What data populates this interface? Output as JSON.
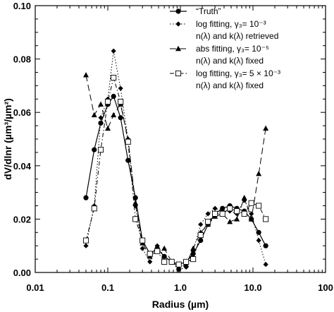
{
  "chart_data": {
    "type": "line",
    "title": "",
    "xlabel": "Radius (µm)",
    "ylabel": "dV/dlnr (µm³/µm²)",
    "xscale": "log",
    "xlim": [
      0.01,
      100
    ],
    "ylim": [
      0.0,
      0.1
    ],
    "grid": false,
    "legend_position": "top-right",
    "x_ticks": [
      "0.01",
      "0.1",
      "1.0",
      "10.0",
      "100"
    ],
    "y_ticks": [
      "0.00",
      "0.02",
      "0.04",
      "0.06",
      "0.08",
      "0.10"
    ],
    "legend": [
      {
        "lines": [
          "“Truth”"
        ]
      },
      {
        "lines": [
          "log fitting, γ₃= 10⁻³",
          "n(λ) and k(λ) retrieved"
        ]
      },
      {
        "lines": [
          "abs fitting, γ₃= 10⁻⁵",
          "n(λ) and k(λ) fixed"
        ]
      },
      {
        "lines": [
          "log fitting, γ₃= 5 × 10⁻³",
          "n(λ) and k(λ) fixed"
        ]
      }
    ],
    "series": [
      {
        "marker": "circle",
        "line": "solid",
        "x": [
          0.05,
          0.065,
          0.08,
          0.1,
          0.12,
          0.15,
          0.19,
          0.24,
          0.3,
          0.38,
          0.48,
          0.6,
          0.76,
          0.95,
          1.2,
          1.5,
          1.9,
          2.4,
          3.0,
          3.8,
          4.8,
          6.0,
          7.6,
          9.5,
          12.0,
          15.0
        ],
        "y": [
          0.028,
          0.046,
          0.056,
          0.063,
          0.066,
          0.058,
          0.042,
          0.028,
          0.012,
          0.007,
          0.009,
          0.006,
          0.004,
          0.003,
          0.004,
          0.007,
          0.012,
          0.018,
          0.022,
          0.024,
          0.025,
          0.024,
          0.023,
          0.02,
          0.015,
          0.01
        ]
      },
      {
        "marker": "diamond",
        "line": "dotted",
        "x": [
          0.05,
          0.065,
          0.08,
          0.1,
          0.12,
          0.15,
          0.19,
          0.24,
          0.3,
          0.38,
          0.48,
          0.6,
          0.76,
          0.95,
          1.2,
          1.5,
          1.9,
          2.4,
          3.0,
          3.8,
          4.8,
          6.0,
          7.6,
          9.5,
          12.0,
          15.0
        ],
        "y": [
          0.01,
          0.025,
          0.058,
          0.065,
          0.083,
          0.069,
          0.05,
          0.025,
          0.009,
          0.004,
          0.01,
          0.006,
          0.004,
          0.001,
          0.002,
          0.008,
          0.018,
          0.022,
          0.024,
          0.023,
          0.023,
          0.022,
          0.027,
          0.022,
          0.012,
          0.003
        ]
      },
      {
        "marker": "triangle",
        "line": "long-dash",
        "x": [
          0.05,
          0.065,
          0.08,
          0.1,
          0.12,
          0.15,
          0.19,
          0.24,
          0.3,
          0.38,
          0.48,
          0.6,
          0.76,
          0.95,
          1.2,
          1.5,
          1.9,
          2.4,
          3.0,
          3.8,
          4.8,
          6.0,
          7.6,
          9.5,
          12.0,
          15.0
        ],
        "y": [
          0.074,
          0.059,
          0.063,
          0.054,
          0.059,
          0.063,
          0.05,
          0.026,
          0.011,
          0.006,
          0.008,
          0.009,
          0.004,
          0.002,
          0.003,
          0.009,
          0.015,
          0.018,
          0.021,
          0.022,
          0.019,
          0.02,
          0.028,
          0.02,
          0.037,
          0.054
        ]
      },
      {
        "marker": "square",
        "line": "dash-dot",
        "x": [
          0.05,
          0.065,
          0.08,
          0.1,
          0.12,
          0.15,
          0.19,
          0.24,
          0.3,
          0.38,
          0.48,
          0.6,
          0.76,
          0.95,
          1.2,
          1.5,
          1.9,
          2.4,
          3.0,
          3.8,
          4.8,
          6.0,
          7.6,
          9.5,
          12.0,
          15.0
        ],
        "y": [
          0.012,
          0.024,
          0.046,
          0.064,
          0.073,
          0.064,
          0.049,
          0.02,
          0.012,
          0.007,
          0.008,
          0.004,
          0.004,
          0.003,
          0.004,
          0.005,
          0.014,
          0.019,
          0.022,
          0.022,
          0.024,
          0.023,
          0.022,
          0.026,
          0.025,
          0.02
        ]
      }
    ]
  }
}
